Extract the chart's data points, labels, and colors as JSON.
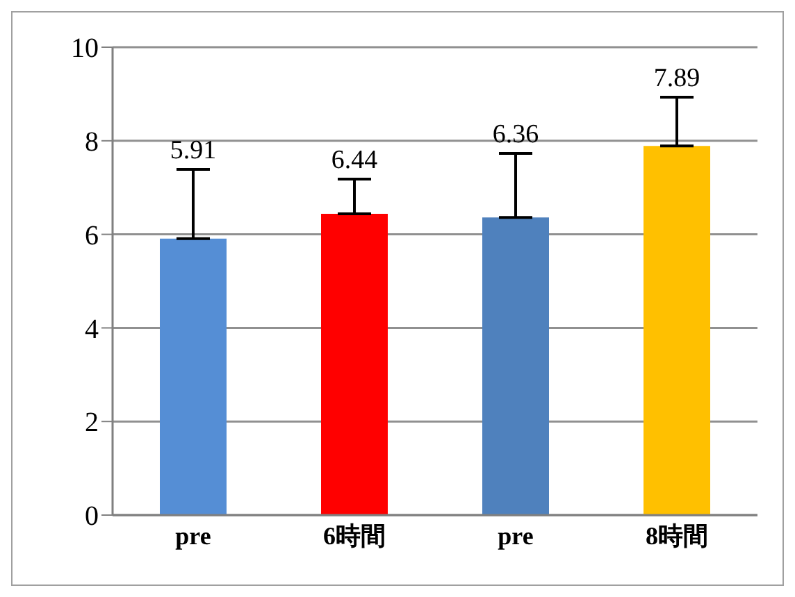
{
  "chart_data": {
    "type": "bar",
    "categories": [
      "pre",
      "6時間",
      "pre",
      "8時間"
    ],
    "values": [
      5.91,
      6.44,
      6.36,
      7.89
    ],
    "colors": [
      "#558ed5",
      "#ff0000",
      "#4f81bd",
      "#ffc000"
    ],
    "errors": [
      [
        5.91,
        7.39
      ],
      [
        6.44,
        7.18
      ],
      [
        6.36,
        7.73
      ],
      [
        7.89,
        8.93
      ]
    ],
    "ylim": [
      0,
      10
    ],
    "yticks": [
      0,
      2,
      4,
      6,
      8,
      10
    ],
    "grid": "y",
    "legend": false,
    "data_labels": true
  }
}
